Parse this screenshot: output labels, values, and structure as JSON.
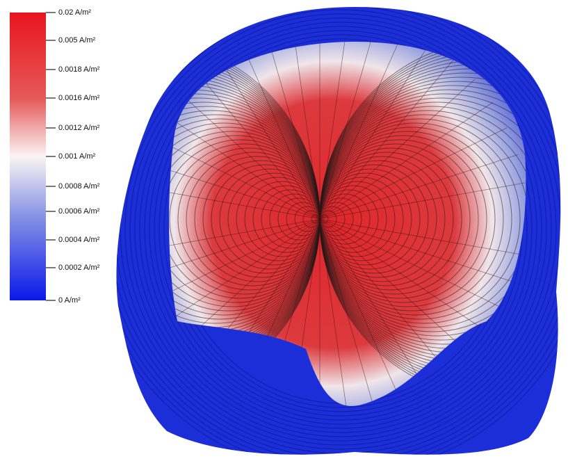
{
  "colorbar": {
    "labels": [
      "0.02 A/m²",
      "0.005 A/m²",
      "0.0018 A/m²",
      "0.0016 A/m²",
      "0.0012 A/m²",
      "0.001 A/m²",
      "0.0008 A/m²",
      "0.0006 A/m²",
      "0.0004 A/m²",
      "0.0002 A/m²",
      "0 A/m²"
    ]
  }
}
